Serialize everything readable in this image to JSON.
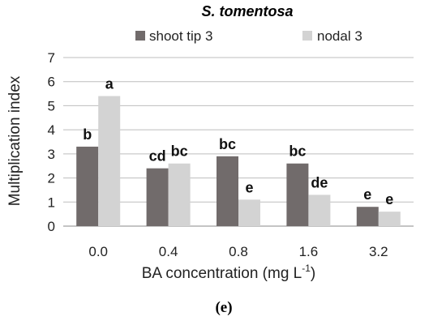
{
  "chart_data": {
    "type": "bar",
    "title": "S. tomentosa",
    "panel_label": "(e)",
    "xlabel": "BA concentration (mg L",
    "xlabel_sup": "-1",
    "xlabel_suffix": ")",
    "ylabel": "Multiplication index",
    "ylim": [
      0,
      7
    ],
    "yticks": [
      0,
      1,
      2,
      3,
      4,
      5,
      6,
      7
    ],
    "grid": true,
    "legend_position": "top",
    "categories": [
      "0.0",
      "0.4",
      "0.8",
      "1.6",
      "3.2"
    ],
    "series": [
      {
        "name": "shoot tip 3",
        "color": "#716b6b",
        "values": [
          3.3,
          2.4,
          2.9,
          2.6,
          0.8
        ],
        "labels": [
          "b",
          "cd",
          "bc",
          "bc",
          "e"
        ]
      },
      {
        "name": "nodal 3",
        "color": "#d3d3d3",
        "values": [
          5.4,
          2.6,
          1.1,
          1.3,
          0.6
        ],
        "labels": [
          "a",
          "bc",
          "e",
          "de",
          "e"
        ]
      }
    ]
  }
}
